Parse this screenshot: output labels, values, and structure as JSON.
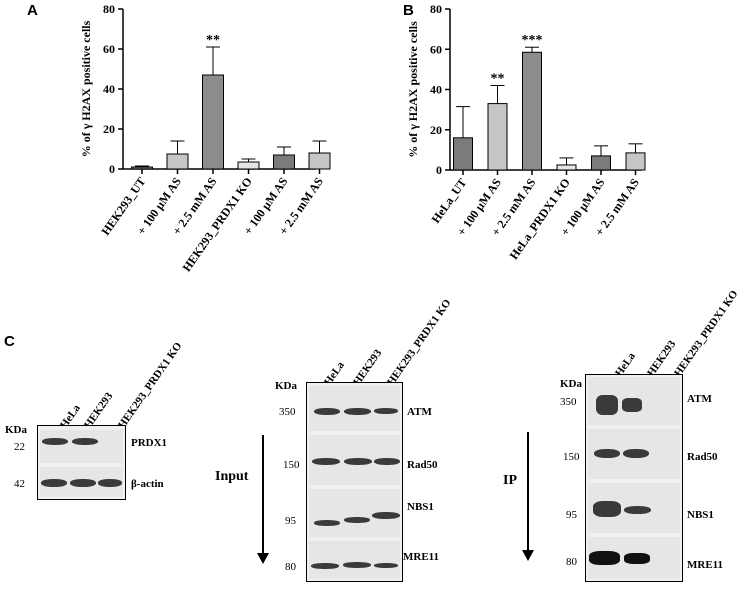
{
  "panel_letters": {
    "a": "A",
    "b": "B",
    "c": "C"
  },
  "chart_data": [
    {
      "type": "bar",
      "panel": "A",
      "ylabel": "% of γ H2AX positive cells",
      "ylim": [
        0,
        80
      ],
      "yticks": [
        0,
        20,
        40,
        60,
        80
      ],
      "categories": [
        "HEK293_UT",
        "+ 100 μM AS",
        "+ 2.5 mM AS",
        "HEK293_PRDX1 KO",
        "+ 100 μM AS",
        "+ 2.5 mM AS"
      ],
      "values": [
        1,
        7.5,
        47,
        3.5,
        7,
        8
      ],
      "errors": [
        0.5,
        6.5,
        14,
        1.5,
        4,
        6
      ],
      "significance": [
        "",
        "",
        "**",
        "",
        "",
        ""
      ],
      "colors": [
        "#7b7b7b",
        "#c6c6c6",
        "#8c8c8c",
        "#e4e4e4",
        "#7b7b7b",
        "#c6c6c6"
      ]
    },
    {
      "type": "bar",
      "panel": "B",
      "ylabel": "% of γ H2AX positive cells",
      "ylim": [
        0,
        80
      ],
      "yticks": [
        0,
        20,
        40,
        60,
        80
      ],
      "categories": [
        "HeLa_UT",
        "+ 100 μM AS",
        "+ 2.5 mM AS",
        "HeLa_PRDX1 KO",
        "+ 100 μM AS",
        "+ 2.5 mM AS"
      ],
      "values": [
        16,
        33,
        58.5,
        2.5,
        7,
        8.5
      ],
      "errors": [
        15.5,
        9,
        2.5,
        3.5,
        5,
        4.5
      ],
      "significance": [
        "",
        "**",
        "***",
        "",
        "",
        ""
      ],
      "colors": [
        "#7b7b7b",
        "#c6c6c6",
        "#8c8c8c",
        "#e4e4e4",
        "#7b7b7b",
        "#c6c6c6"
      ]
    }
  ],
  "blots": {
    "kda_label": "KDa",
    "left": {
      "lanes": [
        "HeLa",
        "HEK293",
        "HEK293_PRDX1 KO"
      ],
      "rows": [
        {
          "mw": "22",
          "protein": "PRDX1"
        },
        {
          "mw": "42",
          "protein": "β-actin"
        }
      ]
    },
    "input": {
      "side_label": "Input",
      "lanes": [
        "HeLa",
        "HEK293",
        "HEK293_PRDX1 KO"
      ],
      "rows": [
        {
          "mw": "350",
          "protein": "ATM"
        },
        {
          "mw": "150",
          "protein": "Rad50"
        },
        {
          "mw": "95",
          "protein": "NBS1"
        },
        {
          "mw": "80",
          "protein": "MRE11"
        }
      ]
    },
    "ip": {
      "side_label": "IP",
      "lanes": [
        "HeLa",
        "HEK293",
        "HEK293_PRDX1 KO"
      ],
      "rows": [
        {
          "mw": "350",
          "protein": "ATM"
        },
        {
          "mw": "150",
          "protein": "Rad50"
        },
        {
          "mw": "95",
          "protein": "NBS1"
        },
        {
          "mw": "80",
          "protein": "MRE11"
        }
      ]
    }
  }
}
